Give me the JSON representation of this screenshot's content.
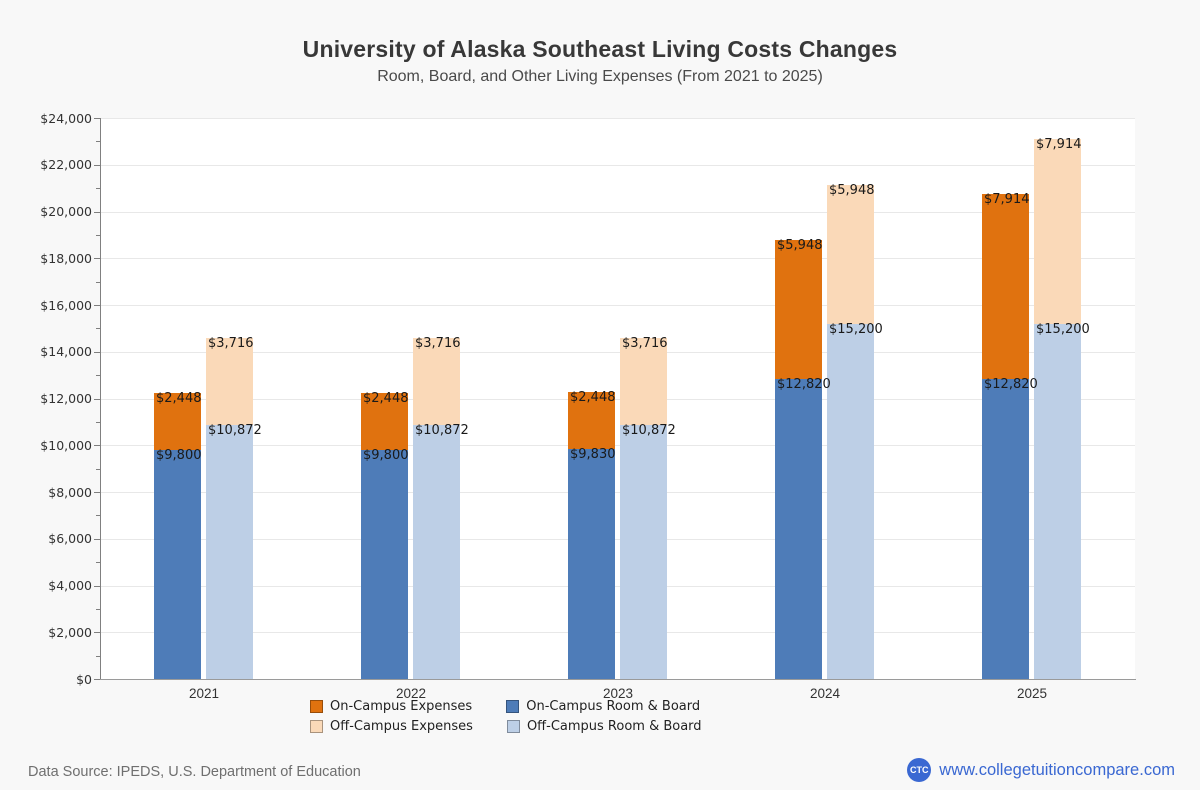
{
  "title": "University of Alaska Southeast Living Costs Changes",
  "subtitle": "Room, Board, and Other Living Expenses (From 2021 to 2025)",
  "footer": {
    "data_source": "Data Source: IPEDS, U.S. Department of Education",
    "website_label": "www.collegetuitioncompare.com",
    "logo_text": "CTC",
    "link_color": "#3a68d2"
  },
  "chart_data": {
    "type": "bar",
    "stacked": true,
    "title": "University of Alaska Southeast Living Costs Changes",
    "subtitle": "Room, Board, and Other Living Expenses (From 2021 to 2025)",
    "categories": [
      "2021",
      "2022",
      "2023",
      "2024",
      "2025"
    ],
    "series": [
      {
        "name": "On-Campus Room & Board",
        "stack": "on-campus",
        "color": "#4e7cb8",
        "values": [
          9800,
          9800,
          9830,
          12820,
          12820
        ],
        "value_labels": [
          "$9,800",
          "$9,800",
          "$9,830",
          "$12,820",
          "$12,820"
        ]
      },
      {
        "name": "On-Campus Expenses",
        "stack": "on-campus",
        "color": "#e0720f",
        "values": [
          2448,
          2448,
          2448,
          5948,
          7914
        ],
        "value_labels": [
          "$2,448",
          "$2,448",
          "$2,448",
          "$5,948",
          "$7,914"
        ]
      },
      {
        "name": "Off-Campus Room & Board",
        "stack": "off-campus",
        "color": "#bdcfe6",
        "values": [
          10872,
          10872,
          10872,
          15200,
          15200
        ],
        "value_labels": [
          "$10,872",
          "$10,872",
          "$10,872",
          "$15,200",
          "$15,200"
        ]
      },
      {
        "name": "Off-Campus Expenses",
        "stack": "off-campus",
        "color": "#fad9b8",
        "values": [
          3716,
          3716,
          3716,
          5948,
          7914
        ],
        "value_labels": [
          "$3,716",
          "$3,716",
          "$3,716",
          "$5,948",
          "$7,914"
        ]
      }
    ],
    "legend": [
      {
        "label": "On-Campus Expenses",
        "color": "#e0720f"
      },
      {
        "label": "On-Campus Room & Board",
        "color": "#4e7cb8"
      },
      {
        "label": "Off-Campus Expenses",
        "color": "#fad9b8"
      },
      {
        "label": "Off-Campus Room & Board",
        "color": "#bdcfe6"
      }
    ],
    "ylim": [
      0,
      24000
    ],
    "ytick_step": 2000,
    "yminor_step": 1000,
    "ytick_labels": [
      "$0",
      "$2,000",
      "$4,000",
      "$6,000",
      "$8,000",
      "$10,000",
      "$12,000",
      "$14,000",
      "$16,000",
      "$18,000",
      "$20,000",
      "$22,000",
      "$24,000"
    ],
    "grid": "horizontal",
    "legend_position": "bottom"
  }
}
